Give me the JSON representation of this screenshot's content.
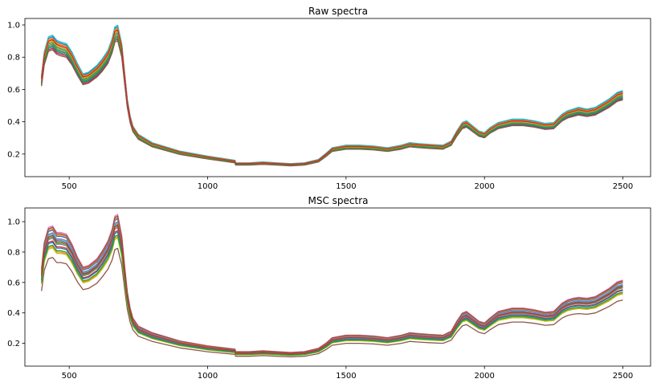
{
  "chart_data": [
    {
      "type": "line",
      "title": "Raw spectra",
      "xlabel": "",
      "ylabel": "",
      "xlim": [
        340,
        2600
      ],
      "ylim": [
        0.06,
        1.04
      ],
      "xticks": [
        500,
        1000,
        1500,
        2000,
        2500
      ],
      "yticks": [
        0.2,
        0.4,
        0.6,
        0.8,
        1.0
      ],
      "xtick_labels": [
        "500",
        "1000",
        "1500",
        "2000",
        "2500"
      ],
      "ytick_labels": [
        "0.2",
        "0.4",
        "0.6",
        "0.8",
        "1.0"
      ],
      "grid": false,
      "legend": "none",
      "base": {
        "x": [
          400,
          410,
          425,
          440,
          455,
          470,
          490,
          510,
          530,
          550,
          570,
          600,
          620,
          640,
          655,
          665,
          675,
          690,
          700,
          710,
          720,
          730,
          750,
          800,
          900,
          1000,
          1099,
          1101,
          1150,
          1200,
          1250,
          1300,
          1350,
          1400,
          1430,
          1450,
          1500,
          1550,
          1600,
          1650,
          1700,
          1730,
          1760,
          1800,
          1850,
          1880,
          1900,
          1920,
          1935,
          1950,
          1980,
          2000,
          2020,
          2050,
          2100,
          2140,
          2180,
          2220,
          2250,
          2280,
          2300,
          2320,
          2340,
          2370,
          2400,
          2420,
          2450,
          2480,
          2500
        ],
        "y": [
          0.66,
          0.8,
          0.89,
          0.9,
          0.87,
          0.86,
          0.85,
          0.8,
          0.73,
          0.67,
          0.68,
          0.72,
          0.76,
          0.81,
          0.88,
          0.95,
          0.96,
          0.85,
          0.68,
          0.52,
          0.42,
          0.36,
          0.31,
          0.26,
          0.21,
          0.18,
          0.155,
          0.14,
          0.14,
          0.145,
          0.14,
          0.135,
          0.14,
          0.16,
          0.2,
          0.23,
          0.245,
          0.245,
          0.24,
          0.23,
          0.245,
          0.26,
          0.255,
          0.25,
          0.245,
          0.27,
          0.33,
          0.38,
          0.39,
          0.37,
          0.33,
          0.32,
          0.35,
          0.38,
          0.4,
          0.4,
          0.39,
          0.375,
          0.38,
          0.43,
          0.45,
          0.46,
          0.47,
          0.46,
          0.47,
          0.49,
          0.52,
          0.56,
          0.57
        ]
      },
      "series": [
        {
          "color": "#1f77b4",
          "scale": 1.03
        },
        {
          "color": "#ff7f0e",
          "scale": 1.01
        },
        {
          "color": "#2ca02c",
          "scale": 0.99
        },
        {
          "color": "#d62728",
          "scale": 0.95
        },
        {
          "color": "#9467bd",
          "scale": 1.0
        },
        {
          "color": "#8c564b",
          "scale": 0.97
        },
        {
          "color": "#e377c2",
          "scale": 1.02
        },
        {
          "color": "#7f7f7f",
          "scale": 0.98
        },
        {
          "color": "#bcbd22",
          "scale": 1.0
        },
        {
          "color": "#17becf",
          "scale": 1.04
        },
        {
          "color": "#1f77b4",
          "scale": 0.96
        },
        {
          "color": "#ff7f0e",
          "scale": 1.02
        },
        {
          "color": "#2ca02c",
          "scale": 0.97
        },
        {
          "color": "#d62728",
          "scale": 1.01
        },
        {
          "color": "#8c564b",
          "scale": 0.94
        }
      ]
    },
    {
      "type": "line",
      "title": "MSC spectra",
      "xlabel": "",
      "ylabel": "",
      "xlim": [
        340,
        2600
      ],
      "ylim": [
        0.05,
        1.09
      ],
      "xticks": [
        500,
        1000,
        1500,
        2000,
        2500
      ],
      "yticks": [
        0.2,
        0.4,
        0.6,
        0.8,
        1.0
      ],
      "xtick_labels": [
        "500",
        "1000",
        "1500",
        "2000",
        "2500"
      ],
      "ytick_labels": [
        "0.2",
        "0.4",
        "0.6",
        "0.8",
        "1.0"
      ],
      "grid": false,
      "legend": "none",
      "base": {
        "x": [
          400,
          410,
          425,
          440,
          455,
          470,
          490,
          510,
          530,
          550,
          570,
          600,
          620,
          640,
          655,
          665,
          675,
          690,
          700,
          710,
          720,
          730,
          750,
          800,
          900,
          1000,
          1099,
          1101,
          1150,
          1200,
          1250,
          1300,
          1350,
          1400,
          1430,
          1450,
          1500,
          1550,
          1600,
          1650,
          1700,
          1730,
          1760,
          1800,
          1850,
          1880,
          1900,
          1920,
          1935,
          1950,
          1980,
          2000,
          2020,
          2050,
          2100,
          2140,
          2180,
          2220,
          2250,
          2280,
          2300,
          2320,
          2340,
          2370,
          2400,
          2420,
          2450,
          2480,
          2500
        ],
        "y": [
          0.64,
          0.8,
          0.89,
          0.9,
          0.86,
          0.86,
          0.85,
          0.79,
          0.71,
          0.65,
          0.66,
          0.7,
          0.75,
          0.81,
          0.88,
          0.96,
          0.97,
          0.84,
          0.66,
          0.5,
          0.4,
          0.34,
          0.29,
          0.25,
          0.2,
          0.17,
          0.15,
          0.135,
          0.135,
          0.14,
          0.135,
          0.13,
          0.135,
          0.155,
          0.19,
          0.22,
          0.235,
          0.235,
          0.23,
          0.22,
          0.235,
          0.25,
          0.245,
          0.24,
          0.235,
          0.26,
          0.32,
          0.37,
          0.38,
          0.36,
          0.32,
          0.31,
          0.34,
          0.38,
          0.4,
          0.4,
          0.39,
          0.375,
          0.38,
          0.43,
          0.45,
          0.46,
          0.465,
          0.46,
          0.47,
          0.49,
          0.52,
          0.56,
          0.57
        ]
      },
      "series": [
        {
          "color": "#1f77b4",
          "scale": 1.05
        },
        {
          "color": "#ff7f0e",
          "scale": 0.93
        },
        {
          "color": "#2ca02c",
          "scale": 1.0
        },
        {
          "color": "#d62728",
          "scale": 0.97
        },
        {
          "color": "#9467bd",
          "scale": 1.03
        },
        {
          "color": "#8c564b",
          "scale": 0.85
        },
        {
          "color": "#e377c2",
          "scale": 1.08
        },
        {
          "color": "#7f7f7f",
          "scale": 0.99
        },
        {
          "color": "#bcbd22",
          "scale": 0.92
        },
        {
          "color": "#17becf",
          "scale": 1.02
        },
        {
          "color": "#1f77b4",
          "scale": 0.96
        },
        {
          "color": "#ff7f0e",
          "scale": 1.06
        },
        {
          "color": "#2ca02c",
          "scale": 0.94
        },
        {
          "color": "#d62728",
          "scale": 1.01
        },
        {
          "color": "#8c564b",
          "scale": 1.07
        }
      ]
    }
  ]
}
